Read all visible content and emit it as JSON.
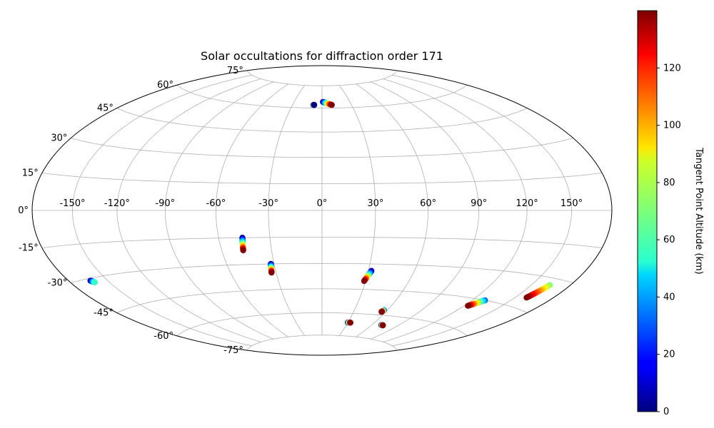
{
  "chart_data": {
    "type": "scatter",
    "projection": "Aitoff/Hammer (equal-area ellipse)",
    "title": "Solar occultations for diffraction order 171",
    "colorbar": {
      "label": "Tangent Point Altitude (km)",
      "colormap": "jet",
      "range": [
        0,
        140
      ],
      "ticks": [
        0,
        20,
        40,
        60,
        80,
        100,
        120
      ]
    },
    "x_ticks": [
      -150,
      -120,
      -90,
      -60,
      -30,
      0,
      30,
      60,
      90,
      120,
      150
    ],
    "x_tick_labels": [
      "-150°",
      "-120°",
      "-90°",
      "-60°",
      "-30°",
      "0°",
      "30°",
      "60°",
      "90°",
      "120°",
      "150°"
    ],
    "y_ticks": [
      75,
      60,
      45,
      30,
      15,
      0,
      -15,
      -30,
      -45,
      -60,
      -75
    ],
    "y_tick_labels": [
      "75°",
      "60°",
      "45°",
      "30°",
      "15°",
      "0°",
      "-15°",
      "-30°",
      "-45°",
      "-60°",
      "-75°"
    ],
    "grid": true,
    "series": [
      {
        "lon_start": -9,
        "lat_start": 62,
        "lon_end": -8,
        "lat_end": 62,
        "alt_start": 140,
        "alt_end": 0
      },
      {
        "lon_start": 1,
        "lat_start": 64,
        "lon_end": 10,
        "lat_end": 62,
        "alt_start": 0,
        "alt_end": 140
      },
      {
        "lon_start": -46,
        "lat_start": -15,
        "lon_end": -47,
        "lat_end": -22,
        "alt_start": 0,
        "alt_end": 140
      },
      {
        "lon_start": -32,
        "lat_start": -30,
        "lon_end": -33,
        "lat_end": -35,
        "alt_start": 0,
        "alt_end": 140
      },
      {
        "lon_start": -163,
        "lat_start": -31,
        "lon_end": -161,
        "lat_end": -32,
        "alt_start": 0,
        "alt_end": 60
      },
      {
        "lon_start": 32,
        "lat_start": -34,
        "lon_end": 29,
        "lat_end": -40,
        "alt_start": 0,
        "alt_end": 140
      },
      {
        "lon_start": 57,
        "lat_start": -57,
        "lon_end": 56,
        "lat_end": -58,
        "alt_start": 20,
        "alt_end": 140
      },
      {
        "lon_start": 30,
        "lat_start": -66,
        "lon_end": 33,
        "lat_end": -66,
        "alt_start": 0,
        "alt_end": 140
      },
      {
        "lon_start": 71,
        "lat_start": -66,
        "lon_end": 73,
        "lat_end": -66,
        "alt_start": 0,
        "alt_end": 140
      },
      {
        "lon_start": 130,
        "lat_start": -45,
        "lon_end": 123,
        "lat_end": -49,
        "alt_start": 30,
        "alt_end": 140
      },
      {
        "lon_start": 164,
        "lat_start": -33,
        "lon_end": 159,
        "lat_end": -40,
        "alt_start": 70,
        "alt_end": 140
      }
    ]
  }
}
